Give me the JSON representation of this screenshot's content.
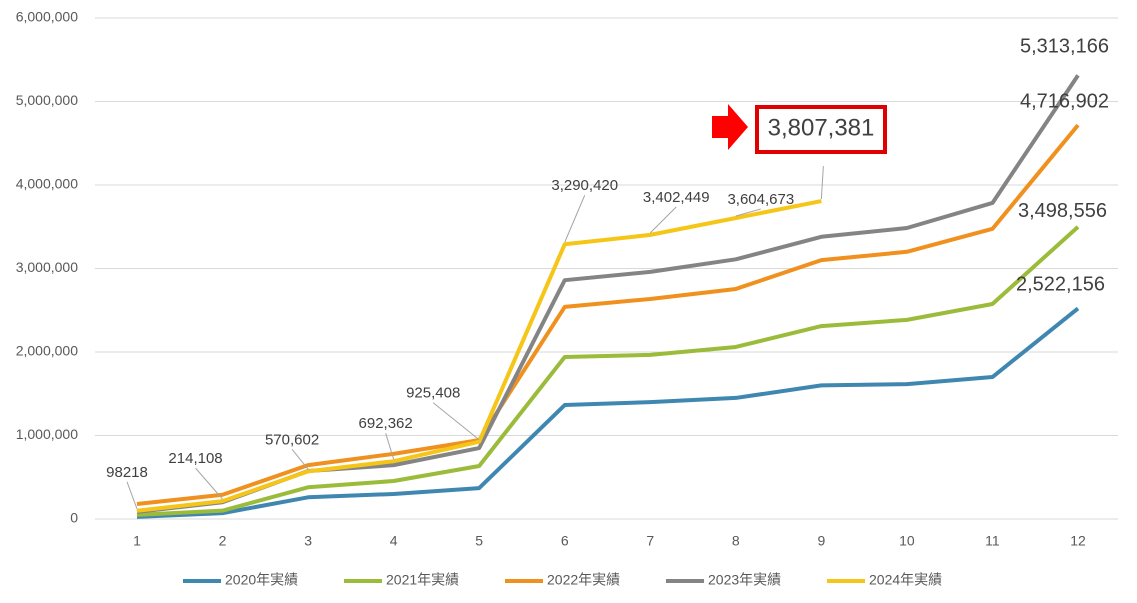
{
  "chart_data": {
    "type": "line",
    "categories": [
      "1",
      "2",
      "3",
      "4",
      "5",
      "6",
      "7",
      "8",
      "9",
      "10",
      "11",
      "12"
    ],
    "ylim": [
      0,
      6000000
    ],
    "yticks": [
      0,
      {
        "value": 1000000,
        "label": "1,000,000"
      },
      {
        "value": 2000000,
        "label": "2,000,000"
      },
      {
        "value": 3000000,
        "label": "3,000,000"
      },
      {
        "value": 4000000,
        "label": "4,000,000"
      },
      {
        "value": 5000000,
        "label": "5,000,000"
      },
      {
        "value": 6000000,
        "label": "6,000,000"
      }
    ],
    "grid": true,
    "legend": "bottom",
    "series": [
      {
        "name": "2020年実績",
        "color": "#3f87b0",
        "values": [
          25000,
          70000,
          260000,
          300000,
          370000,
          1365000,
          1400000,
          1450000,
          1600000,
          1615000,
          1700000,
          2522156
        ],
        "value_labels": [
          null,
          null,
          null,
          null,
          null,
          null,
          null,
          null,
          null,
          null,
          null,
          "2,522,156"
        ]
      },
      {
        "name": "2021年実績",
        "color": "#9bbb3b",
        "values": [
          50000,
          100000,
          380000,
          455000,
          635000,
          1940000,
          1965000,
          2060000,
          2310000,
          2385000,
          2575000,
          3498556
        ],
        "value_labels": [
          null,
          null,
          null,
          null,
          null,
          null,
          null,
          null,
          null,
          null,
          null,
          "3,498,556"
        ]
      },
      {
        "name": "2022年実績",
        "color": "#f0901e",
        "values": [
          180000,
          290000,
          645000,
          780000,
          945000,
          2540000,
          2635000,
          2755000,
          3100000,
          3200000,
          3475000,
          4716902
        ],
        "value_labels": [
          null,
          null,
          null,
          null,
          null,
          null,
          null,
          null,
          null,
          null,
          null,
          "4,716,902"
        ]
      },
      {
        "name": "2023年実績",
        "color": "#848484",
        "values": [
          85000,
          200000,
          575000,
          645000,
          850000,
          2860000,
          2960000,
          3110000,
          3380000,
          3485000,
          3785000,
          5313166
        ],
        "value_labels": [
          null,
          null,
          null,
          null,
          null,
          null,
          null,
          null,
          null,
          null,
          null,
          "5,313,166"
        ]
      },
      {
        "name": "2024年実績",
        "color": "#f5c518",
        "values": [
          98218,
          214108,
          570602,
          692362,
          925408,
          3290420,
          3402449,
          3604673,
          3807381,
          null,
          null,
          null
        ],
        "value_labels": [
          "98218",
          "214,108",
          "570,602",
          "692,362",
          "925,408",
          "3,290,420",
          "3,402,449",
          "3,604,673",
          "3,807,381",
          null,
          null,
          null
        ]
      }
    ]
  }
}
